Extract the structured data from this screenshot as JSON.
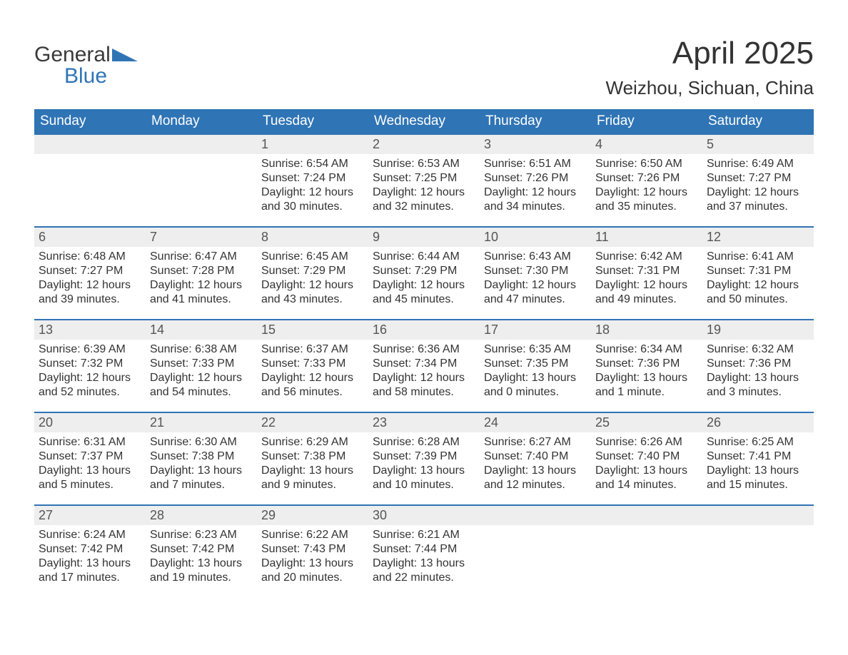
{
  "brand": {
    "word1": "General",
    "word2": "Blue",
    "accent_color": "#2f74b5",
    "text_color": "#3a3a3a"
  },
  "title": "April 2025",
  "location": "Weizhou, Sichuan, China",
  "colors": {
    "header_bg": "#2f74b5",
    "header_text": "#ffffff",
    "daynum_bg": "#eeeeee",
    "body_text": "#333333",
    "week_divider": "#2f74b5",
    "page_bg": "#ffffff"
  },
  "fonts": {
    "title_size_pt": 34,
    "location_size_pt": 20,
    "dow_size_pt": 14,
    "body_size_pt": 12
  },
  "days_of_week": [
    "Sunday",
    "Monday",
    "Tuesday",
    "Wednesday",
    "Thursday",
    "Friday",
    "Saturday"
  ],
  "layout": {
    "columns": 7,
    "rows": 5,
    "leading_blanks": 2,
    "trailing_blanks": 3
  },
  "days": [
    {
      "n": "1",
      "sunrise": "Sunrise: 6:54 AM",
      "sunset": "Sunset: 7:24 PM",
      "day1": "Daylight: 12 hours",
      "day2": "and 30 minutes."
    },
    {
      "n": "2",
      "sunrise": "Sunrise: 6:53 AM",
      "sunset": "Sunset: 7:25 PM",
      "day1": "Daylight: 12 hours",
      "day2": "and 32 minutes."
    },
    {
      "n": "3",
      "sunrise": "Sunrise: 6:51 AM",
      "sunset": "Sunset: 7:26 PM",
      "day1": "Daylight: 12 hours",
      "day2": "and 34 minutes."
    },
    {
      "n": "4",
      "sunrise": "Sunrise: 6:50 AM",
      "sunset": "Sunset: 7:26 PM",
      "day1": "Daylight: 12 hours",
      "day2": "and 35 minutes."
    },
    {
      "n": "5",
      "sunrise": "Sunrise: 6:49 AM",
      "sunset": "Sunset: 7:27 PM",
      "day1": "Daylight: 12 hours",
      "day2": "and 37 minutes."
    },
    {
      "n": "6",
      "sunrise": "Sunrise: 6:48 AM",
      "sunset": "Sunset: 7:27 PM",
      "day1": "Daylight: 12 hours",
      "day2": "and 39 minutes."
    },
    {
      "n": "7",
      "sunrise": "Sunrise: 6:47 AM",
      "sunset": "Sunset: 7:28 PM",
      "day1": "Daylight: 12 hours",
      "day2": "and 41 minutes."
    },
    {
      "n": "8",
      "sunrise": "Sunrise: 6:45 AM",
      "sunset": "Sunset: 7:29 PM",
      "day1": "Daylight: 12 hours",
      "day2": "and 43 minutes."
    },
    {
      "n": "9",
      "sunrise": "Sunrise: 6:44 AM",
      "sunset": "Sunset: 7:29 PM",
      "day1": "Daylight: 12 hours",
      "day2": "and 45 minutes."
    },
    {
      "n": "10",
      "sunrise": "Sunrise: 6:43 AM",
      "sunset": "Sunset: 7:30 PM",
      "day1": "Daylight: 12 hours",
      "day2": "and 47 minutes."
    },
    {
      "n": "11",
      "sunrise": "Sunrise: 6:42 AM",
      "sunset": "Sunset: 7:31 PM",
      "day1": "Daylight: 12 hours",
      "day2": "and 49 minutes."
    },
    {
      "n": "12",
      "sunrise": "Sunrise: 6:41 AM",
      "sunset": "Sunset: 7:31 PM",
      "day1": "Daylight: 12 hours",
      "day2": "and 50 minutes."
    },
    {
      "n": "13",
      "sunrise": "Sunrise: 6:39 AM",
      "sunset": "Sunset: 7:32 PM",
      "day1": "Daylight: 12 hours",
      "day2": "and 52 minutes."
    },
    {
      "n": "14",
      "sunrise": "Sunrise: 6:38 AM",
      "sunset": "Sunset: 7:33 PM",
      "day1": "Daylight: 12 hours",
      "day2": "and 54 minutes."
    },
    {
      "n": "15",
      "sunrise": "Sunrise: 6:37 AM",
      "sunset": "Sunset: 7:33 PM",
      "day1": "Daylight: 12 hours",
      "day2": "and 56 minutes."
    },
    {
      "n": "16",
      "sunrise": "Sunrise: 6:36 AM",
      "sunset": "Sunset: 7:34 PM",
      "day1": "Daylight: 12 hours",
      "day2": "and 58 minutes."
    },
    {
      "n": "17",
      "sunrise": "Sunrise: 6:35 AM",
      "sunset": "Sunset: 7:35 PM",
      "day1": "Daylight: 13 hours",
      "day2": "and 0 minutes."
    },
    {
      "n": "18",
      "sunrise": "Sunrise: 6:34 AM",
      "sunset": "Sunset: 7:36 PM",
      "day1": "Daylight: 13 hours",
      "day2": "and 1 minute."
    },
    {
      "n": "19",
      "sunrise": "Sunrise: 6:32 AM",
      "sunset": "Sunset: 7:36 PM",
      "day1": "Daylight: 13 hours",
      "day2": "and 3 minutes."
    },
    {
      "n": "20",
      "sunrise": "Sunrise: 6:31 AM",
      "sunset": "Sunset: 7:37 PM",
      "day1": "Daylight: 13 hours",
      "day2": "and 5 minutes."
    },
    {
      "n": "21",
      "sunrise": "Sunrise: 6:30 AM",
      "sunset": "Sunset: 7:38 PM",
      "day1": "Daylight: 13 hours",
      "day2": "and 7 minutes."
    },
    {
      "n": "22",
      "sunrise": "Sunrise: 6:29 AM",
      "sunset": "Sunset: 7:38 PM",
      "day1": "Daylight: 13 hours",
      "day2": "and 9 minutes."
    },
    {
      "n": "23",
      "sunrise": "Sunrise: 6:28 AM",
      "sunset": "Sunset: 7:39 PM",
      "day1": "Daylight: 13 hours",
      "day2": "and 10 minutes."
    },
    {
      "n": "24",
      "sunrise": "Sunrise: 6:27 AM",
      "sunset": "Sunset: 7:40 PM",
      "day1": "Daylight: 13 hours",
      "day2": "and 12 minutes."
    },
    {
      "n": "25",
      "sunrise": "Sunrise: 6:26 AM",
      "sunset": "Sunset: 7:40 PM",
      "day1": "Daylight: 13 hours",
      "day2": "and 14 minutes."
    },
    {
      "n": "26",
      "sunrise": "Sunrise: 6:25 AM",
      "sunset": "Sunset: 7:41 PM",
      "day1": "Daylight: 13 hours",
      "day2": "and 15 minutes."
    },
    {
      "n": "27",
      "sunrise": "Sunrise: 6:24 AM",
      "sunset": "Sunset: 7:42 PM",
      "day1": "Daylight: 13 hours",
      "day2": "and 17 minutes."
    },
    {
      "n": "28",
      "sunrise": "Sunrise: 6:23 AM",
      "sunset": "Sunset: 7:42 PM",
      "day1": "Daylight: 13 hours",
      "day2": "and 19 minutes."
    },
    {
      "n": "29",
      "sunrise": "Sunrise: 6:22 AM",
      "sunset": "Sunset: 7:43 PM",
      "day1": "Daylight: 13 hours",
      "day2": "and 20 minutes."
    },
    {
      "n": "30",
      "sunrise": "Sunrise: 6:21 AM",
      "sunset": "Sunset: 7:44 PM",
      "day1": "Daylight: 13 hours",
      "day2": "and 22 minutes."
    }
  ]
}
